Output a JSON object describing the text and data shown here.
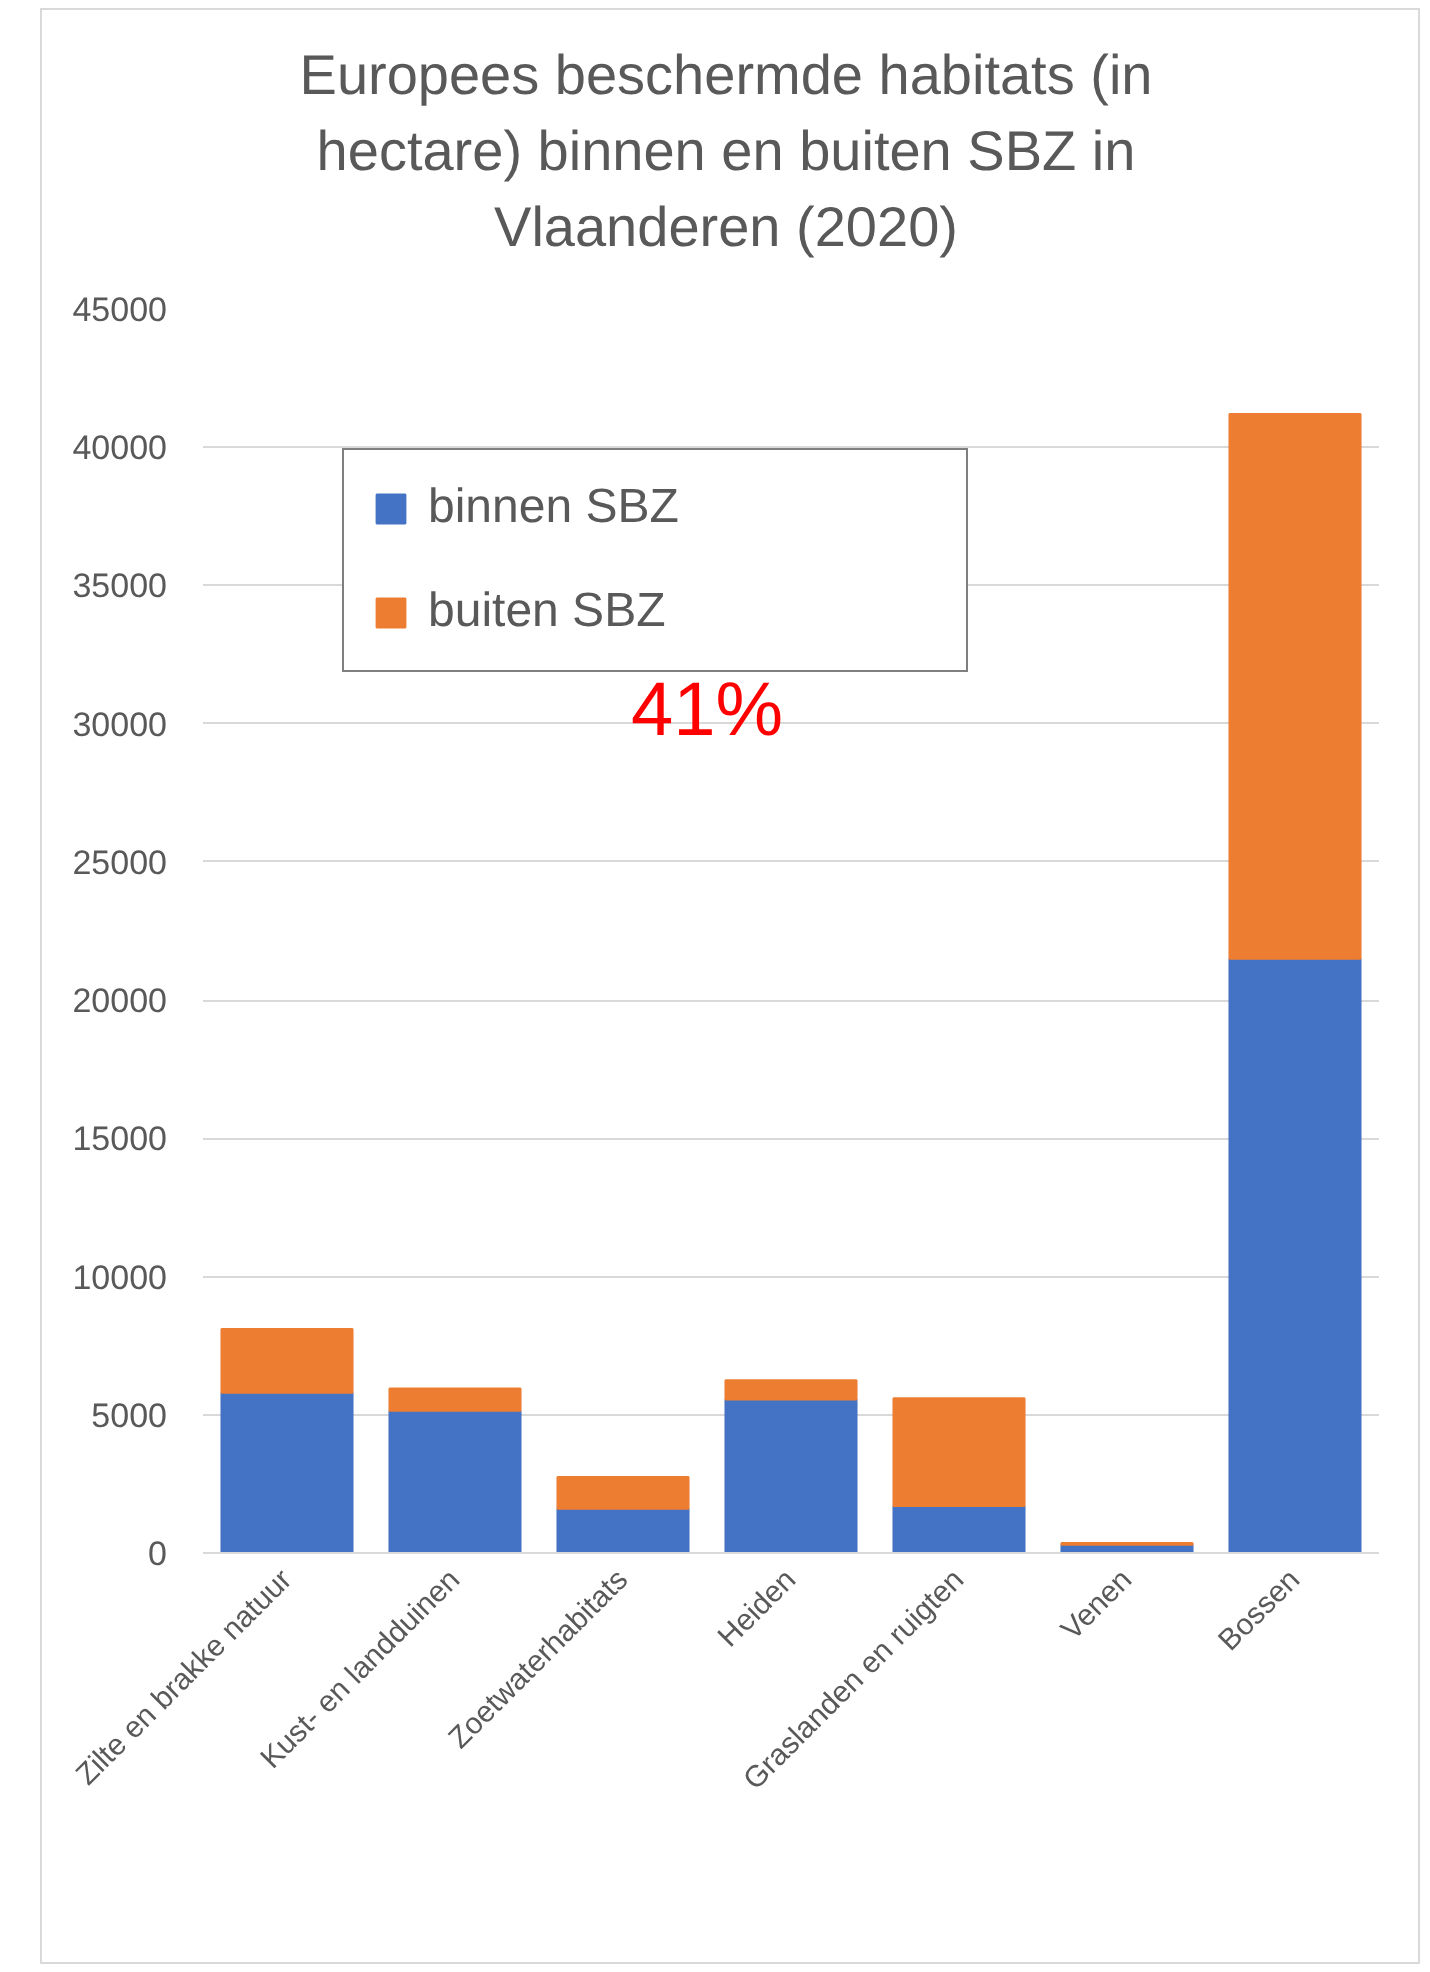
{
  "chart_data": {
    "type": "bar",
    "title": "Europees beschermde habitats (in hectare) binnen en buiten SBZ in Vlaanderen (2020)",
    "categories": [
      "Zilte en brakke natuur",
      "Kust- en landduinen",
      "Zoetwaterhabitats",
      "Heiden",
      "Graslanden en ruigten",
      "Venen",
      "Bossen"
    ],
    "series": [
      {
        "name": "binnen SBZ",
        "color": "#4472c4",
        "values": [
          5800,
          5150,
          1600,
          5550,
          1700,
          300,
          21500
        ]
      },
      {
        "name": "buiten SBZ",
        "color": "#ed7d31",
        "values": [
          2300,
          800,
          1150,
          700,
          3900,
          60,
          19700
        ]
      }
    ],
    "stacked": true,
    "ylim": [
      0,
      45000
    ],
    "yticks": [
      0,
      5000,
      10000,
      15000,
      20000,
      25000,
      30000,
      35000,
      40000,
      45000
    ],
    "grid": "y",
    "legend": "top left",
    "annotations": [
      "41%"
    ]
  }
}
